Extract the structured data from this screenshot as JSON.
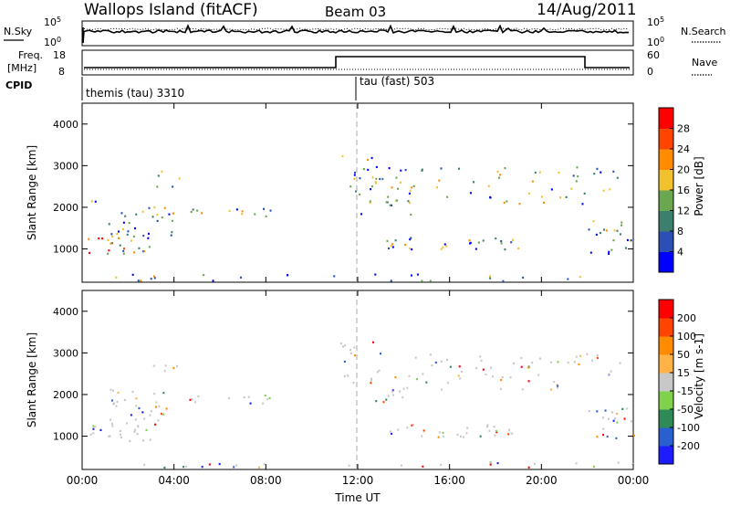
{
  "header": {
    "station": "Wallops Island (fitACF)",
    "beam": "Beam 03",
    "date": "14/Aug/2011"
  },
  "noise_panel": {
    "left_label": "N.Sky",
    "right_label": "N.Search",
    "left_ticks": [
      "10^5",
      "10^0"
    ],
    "right_ticks": [
      "10^5",
      "10^0"
    ],
    "left_ticks_super": [
      [
        "10",
        "5"
      ],
      [
        "10",
        "0"
      ]
    ],
    "right_ticks_super": [
      [
        "10",
        "5"
      ],
      [
        "10",
        "0"
      ]
    ]
  },
  "freq_panel": {
    "left_label_line1": "Freq.",
    "left_label_line2": "[MHz]",
    "right_label": "Nave",
    "left_ticks": [
      "18",
      "8"
    ],
    "right_ticks": [
      "60",
      "0"
    ],
    "cpid_label": "CPID"
  },
  "cpid_segments": [
    {
      "label": "themis (tau) 3310",
      "start_hour": 0
    },
    {
      "label": "tau (fast) 503",
      "start_hour": 12
    }
  ],
  "time_axis": {
    "title": "Time UT",
    "ticks": [
      "00:00",
      "04:00",
      "08:00",
      "12:00",
      "16:00",
      "20:00",
      "00:00"
    ]
  },
  "colors": {
    "power_scale": [
      "#0000ff",
      "#2b4fb5",
      "#3c7f6e",
      "#6aa84f",
      "#f2c12e",
      "#ff8c00",
      "#ff4500",
      "#ff0000"
    ],
    "velocity_scale": [
      "#1c1cff",
      "#2a5fd0",
      "#2e8b57",
      "#7fd34c",
      "#c8c8c8",
      "#ffb347",
      "#ff8c00",
      "#ff4500",
      "#ff0000"
    ]
  },
  "chart_data": [
    {
      "type": "heatmap",
      "title": "",
      "xlabel": "",
      "ylabel": "Slant Range [km]",
      "xlim": [
        0,
        24
      ],
      "ylim": [
        200,
        4500
      ],
      "yticks": [
        1000,
        2000,
        3000,
        4000
      ],
      "colorbar": {
        "label": "Power [dB]",
        "ticks": [
          "4",
          "8",
          "12",
          "16",
          "20",
          "24",
          "28"
        ]
      }
    },
    {
      "type": "heatmap",
      "title": "",
      "xlabel": "Time UT",
      "ylabel": "Slant Range [km]",
      "xlim": [
        0,
        24
      ],
      "ylim": [
        200,
        4500
      ],
      "yticks": [
        1000,
        2000,
        3000,
        4000
      ],
      "colorbar": {
        "label": "Velocity [m s-1]",
        "ticks": [
          "200",
          "100",
          "50",
          "15",
          "-15",
          "-50",
          "-100",
          "-200"
        ]
      }
    }
  ]
}
